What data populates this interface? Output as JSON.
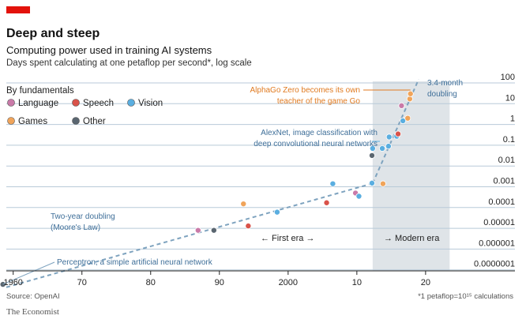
{
  "chart_data": {
    "type": "scatter",
    "title": "Deep and steep",
    "subtitle": "Computing power used in training AI systems",
    "description": "Days spent calculating at one petaflop per second*, log scale",
    "legend_title": "By fundamentals",
    "legend": [
      {
        "name": "Language",
        "color": "#c97aa8"
      },
      {
        "name": "Speech",
        "color": "#d9534a"
      },
      {
        "name": "Vision",
        "color": "#5aaee0"
      },
      {
        "name": "Games",
        "color": "#f0a45a"
      },
      {
        "name": "Other",
        "color": "#5a6670"
      }
    ],
    "x_ticks": [
      {
        "value": 1960,
        "label": "1960"
      },
      {
        "value": 1970,
        "label": "70"
      },
      {
        "value": 1980,
        "label": "80"
      },
      {
        "value": 1990,
        "label": "90"
      },
      {
        "value": 2000,
        "label": "2000"
      },
      {
        "value": 2010,
        "label": "10"
      },
      {
        "value": 2020,
        "label": "20"
      }
    ],
    "xlim": [
      1959,
      2033
    ],
    "y_ticks": [
      {
        "value": 100,
        "label": "100"
      },
      {
        "value": 10,
        "label": "10"
      },
      {
        "value": 1,
        "label": "1"
      },
      {
        "value": 0.1,
        "label": "0.1"
      },
      {
        "value": 0.01,
        "label": "0.01"
      },
      {
        "value": 0.001,
        "label": "0.001"
      },
      {
        "value": 0.0001,
        "label": "0.0001"
      },
      {
        "value": 1e-05,
        "label": "0.00001"
      },
      {
        "value": 1e-06,
        "label": "0.000001"
      },
      {
        "value": 1e-07,
        "label": "0.0000001"
      }
    ],
    "y_scale": "log",
    "modern_era": [
      2012.3,
      2023.5
    ],
    "points": [
      {
        "x": 1958.5,
        "y": 2e-08,
        "cat": "Other"
      },
      {
        "x": 1986.9,
        "y": 8e-06,
        "cat": "Language"
      },
      {
        "x": 1989.2,
        "y": 8e-06,
        "cat": "Other"
      },
      {
        "x": 1993.5,
        "y": 0.00015,
        "cat": "Games"
      },
      {
        "x": 1994.2,
        "y": 1.3e-05,
        "cat": "Speech"
      },
      {
        "x": 1998.4,
        "y": 6e-05,
        "cat": "Vision"
      },
      {
        "x": 2005.6,
        "y": 0.00017,
        "cat": "Speech"
      },
      {
        "x": 2006.5,
        "y": 0.0014,
        "cat": "Vision"
      },
      {
        "x": 2009.8,
        "y": 0.0005,
        "cat": "Language"
      },
      {
        "x": 2010.3,
        "y": 0.00035,
        "cat": "Vision"
      },
      {
        "x": 2012.2,
        "y": 0.0015,
        "cat": "Vision"
      },
      {
        "x": 2012.2,
        "y": 0.032,
        "cat": "Other"
      },
      {
        "x": 2012.3,
        "y": 0.07,
        "cat": "Vision"
      },
      {
        "x": 2013.8,
        "y": 0.0014,
        "cat": "Games"
      },
      {
        "x": 2013.7,
        "y": 0.07,
        "cat": "Vision"
      },
      {
        "x": 2014.6,
        "y": 0.09,
        "cat": "Vision"
      },
      {
        "x": 2014.7,
        "y": 0.25,
        "cat": "Vision"
      },
      {
        "x": 2015.8,
        "y": 0.27,
        "cat": "Vision"
      },
      {
        "x": 2016.0,
        "y": 0.35,
        "cat": "Speech"
      },
      {
        "x": 2016.7,
        "y": 1.5,
        "cat": "Vision"
      },
      {
        "x": 2016.5,
        "y": 8,
        "cat": "Language"
      },
      {
        "x": 2017.4,
        "y": 2,
        "cat": "Games"
      },
      {
        "x": 2017.7,
        "y": 17,
        "cat": "Games"
      },
      {
        "x": 2017.8,
        "y": 30,
        "cat": "Games"
      }
    ],
    "annotations": {
      "alphago": [
        "AlphaGo Zero becomes its own",
        "teacher of the game Go"
      ],
      "alexnet": [
        "AlexNet, image classification with",
        "deep convolutional neural networks"
      ],
      "perceptron": "Perceptron, a simple artificial neural network",
      "moore": [
        "Two-year doubling",
        "(Moore's Law)"
      ],
      "month": [
        "3.4-month",
        "doubling"
      ],
      "first_era": "← First era →",
      "modern_label": "→ Modern era"
    },
    "trend_lines": [
      {
        "name": "moore",
        "x": [
          1959,
          2012.3
        ],
        "y": [
          1.45e-08,
          0.00146
        ]
      },
      {
        "name": "modern",
        "x": [
          2012.3,
          2019
        ],
        "y": [
          0.00146,
          150
        ]
      }
    ],
    "source": "Source: OpenAI",
    "footnote": "*1 petaflop=10¹⁵ calculations",
    "brand": "The Economist"
  }
}
